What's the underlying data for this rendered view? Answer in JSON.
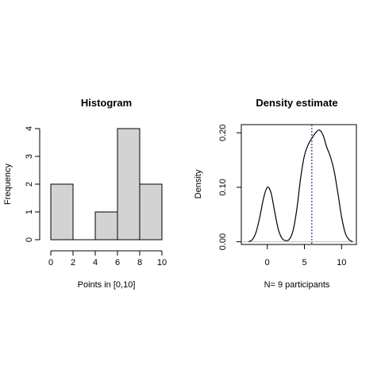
{
  "chart_data": [
    {
      "type": "bar",
      "title": "Histogram",
      "xlabel": "Points in [0,10]",
      "ylabel": "Frequency",
      "bins": [
        [
          0,
          2
        ],
        [
          2,
          4
        ],
        [
          4,
          6
        ],
        [
          6,
          8
        ],
        [
          8,
          10
        ]
      ],
      "values": [
        2,
        0,
        1,
        4,
        2
      ],
      "xlim": [
        0,
        10
      ],
      "ylim": [
        0,
        4
      ],
      "xticks": [
        0,
        2,
        4,
        6,
        8,
        10
      ],
      "yticks": [
        0,
        1,
        2,
        3,
        4
      ],
      "bar_color": "#d3d3d3",
      "grid": false
    },
    {
      "type": "line",
      "title": "Density estimate",
      "xlabel": "N= 9 participants",
      "ylabel": "Density",
      "x": [
        -2.5,
        -2,
        -1.5,
        -1,
        -0.5,
        0,
        0.5,
        1,
        1.5,
        2,
        2.5,
        3,
        3.5,
        4,
        4.5,
        5,
        5.5,
        6,
        6.5,
        7,
        7.5,
        8,
        8.5,
        9,
        9.5,
        10,
        10.5,
        11,
        11.5
      ],
      "y": [
        0.0,
        0.004,
        0.018,
        0.046,
        0.08,
        0.1,
        0.09,
        0.055,
        0.022,
        0.006,
        0.002,
        0.005,
        0.022,
        0.062,
        0.118,
        0.158,
        0.178,
        0.19,
        0.2,
        0.205,
        0.196,
        0.174,
        0.156,
        0.13,
        0.09,
        0.046,
        0.016,
        0.004,
        0.0
      ],
      "xlim": [
        -3.5,
        12
      ],
      "ylim": [
        -0.005,
        0.215
      ],
      "xticks": [
        0,
        5,
        10
      ],
      "yticks": [
        "0.00",
        "0.10",
        "0.20"
      ],
      "ytick_values": [
        0,
        0.1,
        0.2
      ],
      "vline_x": 6,
      "vline_color": "#00008b",
      "baseline_color": "#bebebe",
      "grid": false
    }
  ]
}
